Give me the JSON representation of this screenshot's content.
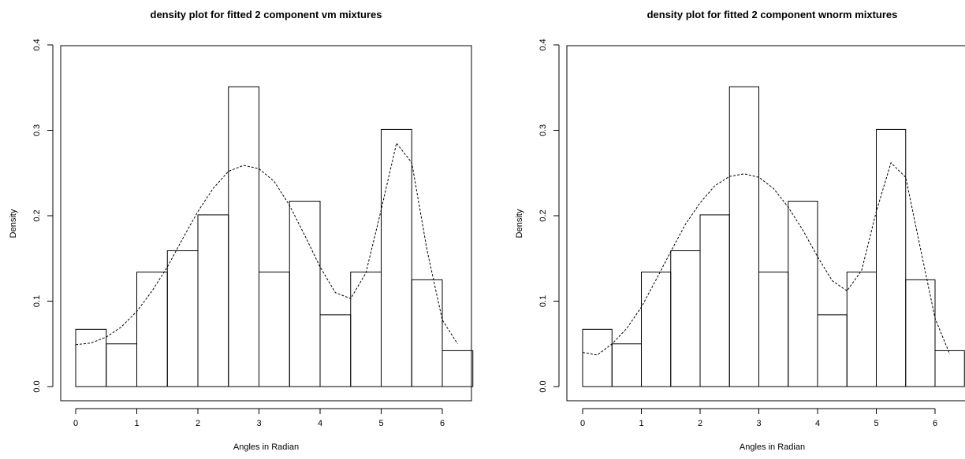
{
  "chart_data": [
    {
      "type": "bar",
      "title": "density plot for fitted 2 component vm mixtures",
      "xlabel": "Angles in Radian",
      "ylabel": "Density",
      "xlim": [
        0,
        6.5
      ],
      "ylim": [
        0,
        0.4
      ],
      "x_ticks": [
        "0",
        "1",
        "2",
        "3",
        "4",
        "5",
        "6"
      ],
      "y_ticks": [
        "0.0",
        "0.1",
        "0.2",
        "0.3",
        "0.4"
      ],
      "bin_edges": [
        0,
        0.5,
        1,
        1.5,
        2,
        2.5,
        3,
        3.5,
        4,
        4.5,
        5,
        5.5,
        6,
        6.5
      ],
      "values": [
        0.067,
        0.05,
        0.134,
        0.159,
        0.201,
        0.351,
        0.134,
        0.217,
        0.084,
        0.134,
        0.301,
        0.125,
        0.042
      ],
      "curve": {
        "x": [
          0,
          0.25,
          0.5,
          0.75,
          1,
          1.25,
          1.5,
          1.75,
          2,
          2.25,
          2.5,
          2.75,
          3,
          3.25,
          3.5,
          3.75,
          4,
          4.25,
          4.5,
          4.75,
          5,
          5.25,
          5.5,
          5.75,
          6,
          6.25
        ],
        "y": [
          0.049,
          0.051,
          0.058,
          0.07,
          0.088,
          0.112,
          0.14,
          0.173,
          0.205,
          0.232,
          0.252,
          0.259,
          0.255,
          0.24,
          0.212,
          0.177,
          0.14,
          0.11,
          0.103,
          0.133,
          0.207,
          0.285,
          0.262,
          0.16,
          0.078,
          0.05
        ]
      }
    },
    {
      "type": "bar",
      "title": "density plot for fitted 2 component wnorm mixtures",
      "xlabel": "Angles in Radian",
      "ylabel": "Density",
      "xlim": [
        0,
        6.5
      ],
      "ylim": [
        0,
        0.4
      ],
      "x_ticks": [
        "0",
        "1",
        "2",
        "3",
        "4",
        "5",
        "6"
      ],
      "y_ticks": [
        "0.0",
        "0.1",
        "0.2",
        "0.3",
        "0.4"
      ],
      "bin_edges": [
        0,
        0.5,
        1,
        1.5,
        2,
        2.5,
        3,
        3.5,
        4,
        4.5,
        5,
        5.5,
        6,
        6.5
      ],
      "values": [
        0.067,
        0.05,
        0.134,
        0.159,
        0.201,
        0.351,
        0.134,
        0.217,
        0.084,
        0.134,
        0.301,
        0.125,
        0.042
      ],
      "curve": {
        "x": [
          0,
          0.25,
          0.5,
          0.75,
          1,
          1.25,
          1.5,
          1.75,
          2,
          2.25,
          2.5,
          2.75,
          3,
          3.25,
          3.5,
          3.75,
          4,
          4.25,
          4.5,
          4.75,
          5,
          5.25,
          5.5,
          5.75,
          6,
          6.25
        ],
        "y": [
          0.04,
          0.037,
          0.05,
          0.068,
          0.093,
          0.125,
          0.158,
          0.19,
          0.215,
          0.235,
          0.246,
          0.249,
          0.245,
          0.232,
          0.21,
          0.183,
          0.152,
          0.124,
          0.112,
          0.136,
          0.205,
          0.262,
          0.245,
          0.162,
          0.08,
          0.038
        ]
      }
    }
  ]
}
